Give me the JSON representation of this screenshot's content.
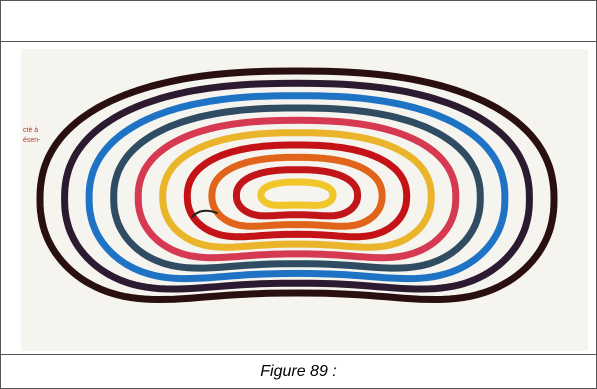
{
  "figure": {
    "caption": "Figure 89 :",
    "margin_note_lines": [
      "cté à",
      "ésen-"
    ]
  },
  "contours": {
    "colors": [
      "#2a0f10",
      "#2c1a30",
      "#1f73c4",
      "#2f4c63",
      "#d53a52",
      "#eab52b",
      "#c41216",
      "#e0651a",
      "#c2151a",
      "#f0c62a"
    ]
  }
}
